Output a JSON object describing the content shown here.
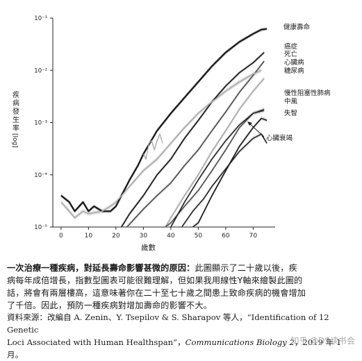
{
  "chart_data": {
    "type": "line",
    "title": "",
    "xlabel": "歲數",
    "ylabel": "疾病發生率",
    "ylabel_scale": "[log]",
    "y_scale": "log",
    "xlim": [
      -3,
      78
    ],
    "ylim": [
      1e-05,
      0.1
    ],
    "x_ticks": [
      0,
      10,
      20,
      30,
      40,
      50,
      60,
      70
    ],
    "y_tick_labels": [
      "10⁻⁵",
      "10⁻⁴",
      "10⁻³",
      "10⁻²",
      "10⁻¹"
    ],
    "grid": false,
    "legend": "direct labels at line ends",
    "series": [
      {
        "name": "健康壽命",
        "x": [
          0,
          3,
          5,
          8,
          10,
          12,
          15,
          18,
          20,
          22,
          25,
          28,
          30,
          35,
          40,
          45,
          50,
          55,
          60,
          65,
          70,
          73,
          75
        ],
        "y": [
          4e-05,
          3e-05,
          2e-05,
          3e-05,
          2e-05,
          2.5e-05,
          2e-05,
          2e-05,
          2.5e-05,
          4e-05,
          8e-05,
          0.00015,
          0.00025,
          0.0007,
          0.0015,
          0.003,
          0.006,
          0.012,
          0.022,
          0.035,
          0.05,
          0.06,
          0.062
        ]
      },
      {
        "name": "癌症",
        "x": [
          22,
          25,
          30,
          35,
          40,
          45,
          50,
          55,
          60,
          65,
          70,
          74
        ],
        "y": [
          1e-05,
          1.8e-05,
          4e-05,
          0.0001,
          0.0002,
          0.0005,
          0.0011,
          0.0025,
          0.005,
          0.009,
          0.014,
          0.022
        ]
      },
      {
        "name": "死亡",
        "x": [
          24,
          30,
          35,
          40,
          45,
          50,
          55,
          60,
          65,
          70,
          74
        ],
        "y": [
          1e-05,
          2.2e-05,
          4e-05,
          7e-05,
          0.00015,
          0.0003,
          0.0007,
          0.0016,
          0.0038,
          0.008,
          0.015
        ]
      },
      {
        "name": "心臟病",
        "x": [
          38,
          40,
          45,
          50,
          55,
          60,
          65,
          70,
          74
        ],
        "y": [
          1e-05,
          1.5e-05,
          4e-05,
          0.0001,
          0.00028,
          0.0007,
          0.0018,
          0.004,
          0.007
        ]
      },
      {
        "name": "糖尿病",
        "x": [
          0,
          3,
          5,
          8,
          10,
          15,
          18,
          20,
          25,
          30,
          35,
          40,
          45,
          50,
          55,
          60,
          65,
          70,
          73
        ],
        "y": [
          3e-05,
          2e-05,
          1.5e-05,
          2e-05,
          1.8e-05,
          2e-05,
          2.5e-05,
          3e-05,
          6e-05,
          0.00012,
          0.0002,
          0.0004,
          0.0008,
          0.0015,
          0.0025,
          0.004,
          0.006,
          0.0085,
          0.01
        ]
      },
      {
        "name": "慢性阻塞性肺病",
        "x": [
          38,
          40,
          45,
          50,
          55,
          60,
          65,
          70,
          74
        ],
        "y": [
          1e-05,
          1.2e-05,
          2.5e-05,
          5e-05,
          0.00012,
          0.0003,
          0.0008,
          0.0015,
          0.0018
        ]
      },
      {
        "name": "中風",
        "x": [
          40,
          45,
          50,
          55,
          60,
          65,
          70,
          74
        ],
        "y": [
          1e-05,
          3e-05,
          8e-05,
          0.0002,
          0.00045,
          0.0009,
          0.0015,
          0.0017
        ]
      },
      {
        "name": "失智",
        "x": [
          48,
          50,
          55,
          60,
          65,
          70,
          73,
          75
        ],
        "y": [
          1e-05,
          1.2e-05,
          4e-05,
          0.00012,
          0.00035,
          0.0008,
          0.0012,
          0.0011
        ]
      },
      {
        "name": "心臟衰竭",
        "x": [
          44,
          48,
          52,
          55,
          60,
          65,
          70,
          73,
          75
        ],
        "y": [
          1e-05,
          2e-05,
          3.5e-05,
          6e-05,
          0.00013,
          0.00028,
          0.0005,
          0.0006,
          0.0004
        ]
      },
      {
        "name": "",
        "x": [
          30,
          31,
          32,
          33,
          34,
          35,
          36,
          37
        ],
        "y": [
          0.00025,
          0.0002,
          0.0004,
          0.00045,
          0.0003,
          0.00045,
          0.0006,
          0.0004
        ]
      }
    ],
    "series_labels": [
      "健康壽命",
      "癌症",
      "死亡",
      "心臟病",
      "糖尿病",
      "慢性阻塞性肺病",
      "中風",
      "失智",
      "心臟衰竭"
    ]
  },
  "caption": {
    "lead": "一次治療一種疾病，對延長壽命影響甚微的原因：",
    "body_line1": "此圖顯示了二十歲以後，疾",
    "body_line2": "病每年成倍增長，指數型圖表可能很難理解，但如果我用線性Y軸來繪製此圖的",
    "body_line3": "話，將會有兩層樓高，這意味著你在二十至七十歲之間患上致命疾病的機會增加",
    "body_line4": "了千倍。因此，預防一種疾病對增加壽命的影響不大。"
  },
  "source": {
    "line1": "資料來源：改編自 A. Zenin、Y. Tsepilov & S. Sharapov 等人，“Identification of 12 Genetic",
    "line2_plain": "Loci Associated with Human Healthspan”，",
    "line2_italic": "Communications Biology 2",
    "line2_tail": "，2019 年 1 月。"
  },
  "watermark": "知乎 @DS读书会",
  "colors": {
    "dark_line": "#1c1c1c",
    "mid_line": "#4a4a4a",
    "light_line": "#a8a8a8",
    "band": "#d0d0d0",
    "axis": "#222222"
  }
}
